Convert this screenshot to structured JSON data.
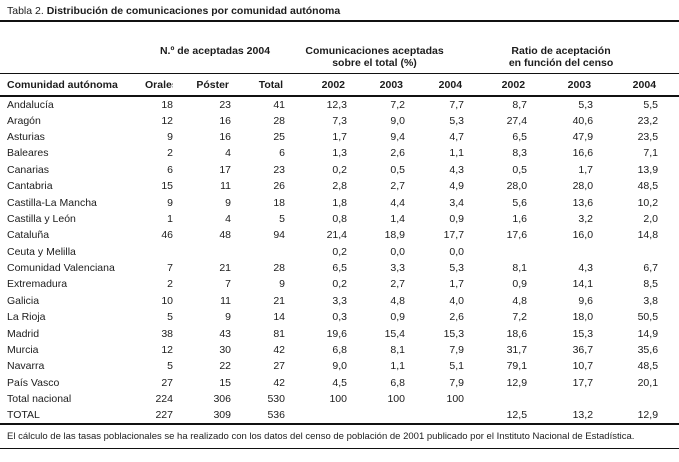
{
  "title": {
    "prefix": "Tabla 2.",
    "main": "Distribución de comunicaciones por comunidad autónoma"
  },
  "table": {
    "groups": {
      "accepted_2004": "N.º de aceptadas 2004",
      "accepted_over_total": "Comunicaciones aceptadas\nsobre el total (%)",
      "ratio_census": "Ratio de aceptación\nen función del censo"
    },
    "columns": {
      "name": "Comunidad autónoma",
      "orales": "Orales",
      "poster": "Póster",
      "total": "Total",
      "pct_2002": "2002",
      "pct_2003": "2003",
      "pct_2004": "2004",
      "ratio_2002": "2002",
      "ratio_2003": "2003",
      "ratio_2004": "2004"
    },
    "rows": [
      [
        "Andalucía",
        "18",
        "23",
        "41",
        "12,3",
        "7,2",
        "7,7",
        "8,7",
        "5,3",
        "5,5"
      ],
      [
        "Aragón",
        "12",
        "16",
        "28",
        "7,3",
        "9,0",
        "5,3",
        "27,4",
        "40,6",
        "23,2"
      ],
      [
        "Asturias",
        "9",
        "16",
        "25",
        "1,7",
        "9,4",
        "4,7",
        "6,5",
        "47,9",
        "23,5"
      ],
      [
        "Baleares",
        "2",
        "4",
        "6",
        "1,3",
        "2,6",
        "1,1",
        "8,3",
        "16,6",
        "7,1"
      ],
      [
        "Canarias",
        "6",
        "17",
        "23",
        "0,2",
        "0,5",
        "4,3",
        "0,5",
        "1,7",
        "13,9"
      ],
      [
        "Cantabria",
        "15",
        "11",
        "26",
        "2,8",
        "2,7",
        "4,9",
        "28,0",
        "28,0",
        "48,5"
      ],
      [
        "Castilla-La Mancha",
        "9",
        "9",
        "18",
        "1,8",
        "4,4",
        "3,4",
        "5,6",
        "13,6",
        "10,2"
      ],
      [
        "Castilla y León",
        "1",
        "4",
        "5",
        "0,8",
        "1,4",
        "0,9",
        "1,6",
        "3,2",
        "2,0"
      ],
      [
        "Cataluña",
        "46",
        "48",
        "94",
        "21,4",
        "18,9",
        "17,7",
        "17,6",
        "16,0",
        "14,8"
      ],
      [
        "Ceuta y Melilla",
        "",
        "",
        "",
        "0,2",
        "0,0",
        "0,0",
        "",
        "",
        ""
      ],
      [
        "Comunidad Valenciana",
        "7",
        "21",
        "28",
        "6,5",
        "3,3",
        "5,3",
        "8,1",
        "4,3",
        "6,7"
      ],
      [
        "Extremadura",
        "2",
        "7",
        "9",
        "0,2",
        "2,7",
        "1,7",
        "0,9",
        "14,1",
        "8,5"
      ],
      [
        "Galicia",
        "10",
        "11",
        "21",
        "3,3",
        "4,8",
        "4,0",
        "4,8",
        "9,6",
        "3,8"
      ],
      [
        "La Rioja",
        "5",
        "9",
        "14",
        "0,3",
        "0,9",
        "2,6",
        "7,2",
        "18,0",
        "50,5"
      ],
      [
        "Madrid",
        "38",
        "43",
        "81",
        "19,6",
        "15,4",
        "15,3",
        "18,6",
        "15,3",
        "14,9"
      ],
      [
        "Murcia",
        "12",
        "30",
        "42",
        "6,8",
        "8,1",
        "7,9",
        "31,7",
        "36,7",
        "35,6"
      ],
      [
        "Navarra",
        "5",
        "22",
        "27",
        "9,0",
        "1,1",
        "5,1",
        "79,1",
        "10,7",
        "48,5"
      ],
      [
        "País Vasco",
        "27",
        "15",
        "42",
        "4,5",
        "6,8",
        "7,9",
        "12,9",
        "17,7",
        "20,1"
      ],
      [
        "Total nacional",
        "224",
        "306",
        "530",
        "100",
        "100",
        "100",
        "",
        "",
        ""
      ],
      [
        "TOTAL",
        "227",
        "309",
        "536",
        "",
        "",
        "",
        "12,5",
        "13,2",
        "12,9"
      ]
    ]
  },
  "footnote": "El cálculo de las tasas poblacionales se ha realizado con los datos del censo de población de 2001 publicado por el Instituto Nacional de Estadística.",
  "colors": {
    "text": "#1c1c1c",
    "rule": "#111111",
    "background": "#ffffff"
  }
}
